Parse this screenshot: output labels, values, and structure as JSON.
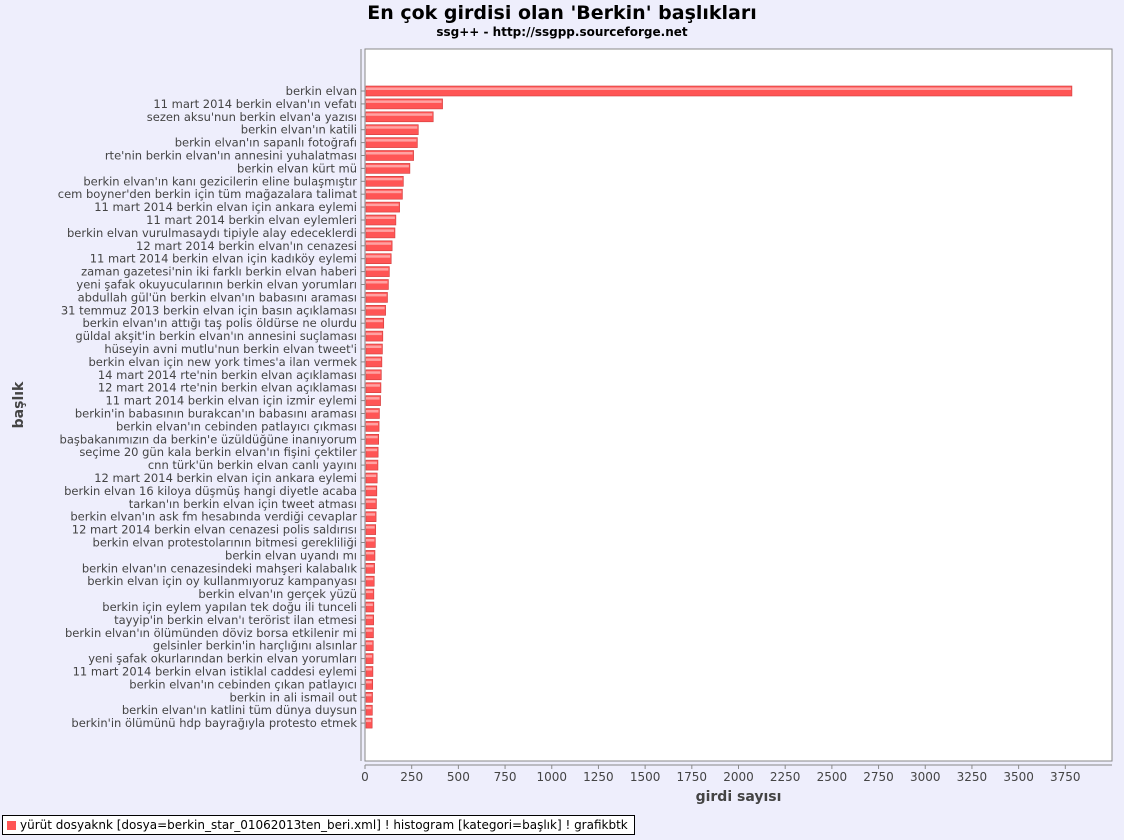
{
  "chart_data": {
    "type": "bar",
    "orientation": "horizontal",
    "title": "En çok girdisi olan 'Berkin' başlıkları",
    "subtitle": "ssg++ - http://ssgpp.sourceforge.net",
    "xlabel": "girdi sayısı",
    "ylabel": "başlık",
    "xlim": [
      0,
      4000
    ],
    "xticks": [
      0,
      250,
      500,
      750,
      1000,
      1250,
      1500,
      1750,
      2000,
      2250,
      2500,
      2750,
      3000,
      3250,
      3500,
      3750
    ],
    "grid": false,
    "legend_position": "bottom-left",
    "colors": {
      "bar": "#ff5555",
      "bar_highlight": "#ffb0b0",
      "background": "#eeeefc",
      "plot_background": "#ffffff"
    },
    "categories": [
      "berkin elvan",
      "11 mart 2014 berkin elvan'ın vefatı",
      "sezen aksu'nun berkin elvan'a yazısı",
      "berkin elvan'ın katili",
      "berkin elvan'ın sapanlı fotoğrafı",
      "rte'nin berkin elvan'ın annesini yuhalatması",
      "berkin elvan kürt mü",
      "berkin elvan'ın kanı gezicilerin eline bulaşmıştır",
      "cem boyner'den berkin için tüm mağazalara talimat",
      "11 mart 2014 berkin elvan için ankara eylemi",
      "11 mart 2014 berkin elvan eylemleri",
      "berkin elvan vurulmasaydı tipiyle alay edeceklerdi",
      "12 mart 2014 berkin elvan'ın cenazesi",
      "11 mart 2014 berkin elvan için kadıköy eylemi",
      "zaman gazetesi'nin iki farklı berkin elvan haberi",
      "yeni şafak okuyucularının berkin elvan yorumları",
      "abdullah gül'ün berkin elvan'ın babasını araması",
      "31 temmuz 2013 berkin elvan için basın açıklaması",
      "berkin elvan'ın attığı taş polis öldürse ne olurdu",
      "güldal akşit'in berkin elvan'ın annesini suçlaması",
      "hüseyin avni mutlu'nun berkin elvan tweet'i",
      "berkin elvan için new york times'a ilan vermek",
      "14 mart 2014 rte'nin berkin elvan açıklaması",
      "12 mart 2014 rte'nin berkin elvan açıklaması",
      "11 mart 2014 berkin elvan için izmir eylemi",
      "berkin'in babasının burakcan'ın babasını araması",
      "berkin elvan'ın cebinden patlayıcı çıkması",
      "başbakanımızın da berkin'e üzüldüğüne inanıyorum",
      "seçime 20 gün kala berkin elvan'ın fişini çektiler",
      "cnn türk'ün berkin elvan canlı yayını",
      "12 mart 2014 berkin elvan için ankara eylemi",
      "berkin elvan 16 kiloya düşmüş hangi diyetle acaba",
      "tarkan'ın berkin elvan için tweet atması",
      "berkin elvan'ın ask fm hesabında verdiği cevaplar",
      "12 mart 2014 berkin elvan cenazesi polis saldırısı",
      "berkin elvan protestolarının bitmesi gerekliliği",
      "berkin elvan uyandı mı",
      "berkin elvan'ın cenazesindeki mahşeri kalabalık",
      "berkin elvan için oy kullanmıyoruz kampanyası",
      "berkin elvan'ın gerçek yüzü",
      "berkin için eylem yapılan tek doğu ili tunceli",
      "tayyip'in berkin elvan'ı terörist ilan etmesi",
      "berkin elvan'ın ölümünden döviz borsa etkilenir mi",
      "gelsinler berkin'in harçlığını alsınlar",
      "yeni şafak okurlarından berkin elvan yorumları",
      "11 mart 2014 berkin elvan istiklal caddesi eylemi",
      "berkin elvan'ın cebinden çıkan patlayıcı",
      "berkin in ali ismail out",
      "berkin elvan'ın katlini tüm dünya duysun",
      "berkin'in ölümünü hdp bayrağıyla protesto etmek"
    ],
    "values": [
      3780,
      410,
      360,
      280,
      275,
      255,
      235,
      200,
      195,
      180,
      160,
      155,
      140,
      135,
      125,
      120,
      115,
      105,
      95,
      90,
      88,
      85,
      82,
      80,
      78,
      72,
      70,
      68,
      65,
      64,
      60,
      58,
      56,
      54,
      52,
      50,
      48,
      46,
      44,
      42,
      42,
      41,
      40,
      39,
      38,
      37,
      36,
      35,
      34,
      33
    ]
  },
  "legend": {
    "label": "yürüt dosyaknk [dosya=berkin_star_01062013ten_beri.xml] ! histogram [kategori=başlık] ! grafikbtk"
  }
}
